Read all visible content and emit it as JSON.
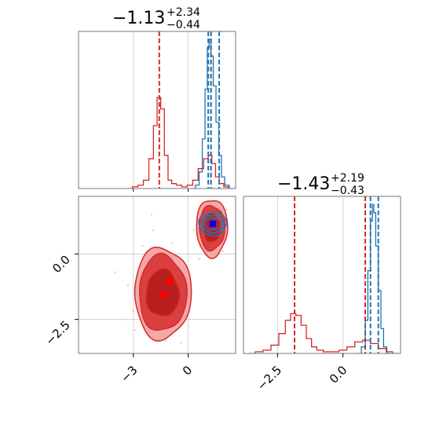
{
  "chart_data": [
    {
      "panel": "marginal-x",
      "type": "histogram",
      "title": {
        "value": "−1.13",
        "upper": "+2.34",
        "lower": "−0.44"
      },
      "xlim": [
        -6,
        2.6
      ],
      "grid": true,
      "series": [
        {
          "name": "",
          "color": "#d62728",
          "bins": [
            [
              -3.2,
              0.0
            ],
            [
              -2.9,
              0.01
            ],
            [
              -2.6,
              0.02
            ],
            [
              -2.3,
              0.05
            ],
            [
              -2.0,
              0.18
            ],
            [
              -1.8,
              0.38
            ],
            [
              -1.6,
              0.55
            ],
            [
              -1.4,
              0.48
            ],
            [
              -1.2,
              0.2
            ],
            [
              -1.0,
              0.05
            ],
            [
              -0.8,
              0.03
            ],
            [
              -0.5,
              0.02
            ],
            [
              -0.2,
              0.01
            ],
            [
              0.1,
              0.02
            ],
            [
              0.4,
              0.05
            ],
            [
              0.7,
              0.12
            ],
            [
              1.0,
              0.18
            ],
            [
              1.2,
              0.2
            ],
            [
              1.4,
              0.15
            ],
            [
              1.6,
              0.07
            ],
            [
              1.8,
              0.03
            ],
            [
              2.1,
              0.01
            ]
          ],
          "quantile_lines": [
            -1.58,
            1.25
          ]
        },
        {
          "name": "",
          "color": "#1f77b4",
          "bins": [
            [
              0.3,
              0.0
            ],
            [
              0.5,
              0.02
            ],
            [
              0.7,
              0.1
            ],
            [
              0.85,
              0.3
            ],
            [
              1.0,
              0.6
            ],
            [
              1.1,
              0.85
            ],
            [
              1.2,
              0.9
            ],
            [
              1.3,
              0.8
            ],
            [
              1.45,
              0.62
            ],
            [
              1.6,
              0.4
            ],
            [
              1.75,
              0.2
            ],
            [
              1.9,
              0.07
            ],
            [
              2.1,
              0.02
            ],
            [
              2.4,
              0.0
            ]
          ],
          "quantile_lines": [
            1.1,
            1.25,
            1.7
          ]
        }
      ]
    },
    {
      "panel": "joint",
      "type": "contour",
      "xlim": [
        -6,
        2.6
      ],
      "ylim": [
        -3.8,
        2.2
      ],
      "grid": true,
      "xticks": [
        -3,
        0
      ],
      "yticks": [
        0.0,
        -2.5
      ],
      "red_modes": [
        {
          "cx": -1.4,
          "cy": -1.5,
          "rx": [
            0.9,
            1.3,
            1.55
          ],
          "ry": [
            0.9,
            1.45,
            1.75
          ]
        },
        {
          "cx": 1.3,
          "cy": 1.0,
          "rx": [
            0.45,
            0.7,
            0.85
          ],
          "ry": [
            0.55,
            0.85,
            1.1
          ]
        }
      ],
      "blue_mode": {
        "cx": 1.35,
        "cy": 1.15,
        "rx": [
          0.45,
          0.6,
          0.75
        ],
        "ry": [
          0.22,
          0.33,
          0.45
        ]
      },
      "markers": [
        {
          "x": -1.35,
          "y": -1.55,
          "color": "#ff0000"
        },
        {
          "x": -1.0,
          "y": -1.05,
          "color": "#ff0000"
        },
        {
          "x": 1.35,
          "y": 1.15,
          "color": "#0000ff"
        }
      ],
      "scatter_points": [
        [
          -4.0,
          -0.7
        ],
        [
          -3.3,
          -1.2
        ],
        [
          -3.0,
          -2.2
        ],
        [
          -2.5,
          0.3
        ],
        [
          -2.2,
          -0.6
        ],
        [
          -2.0,
          1.5
        ],
        [
          -1.8,
          -2.4
        ],
        [
          -1.5,
          -0.2
        ],
        [
          -1.2,
          -3.3
        ],
        [
          -0.8,
          -0.5
        ],
        [
          -0.6,
          -2.9
        ],
        [
          -0.3,
          -2.0
        ],
        [
          0.2,
          -1.4
        ],
        [
          0.3,
          0.9
        ],
        [
          0.6,
          -0.2
        ],
        [
          1.9,
          0.1
        ],
        [
          2.1,
          1.7
        ],
        [
          0.8,
          1.9
        ],
        [
          -2.6,
          -1.9
        ],
        [
          -1.9,
          0.9
        ],
        [
          -0.9,
          0.4
        ],
        [
          -0.4,
          -3.4
        ],
        [
          -2.9,
          -2.9
        ],
        [
          -3.6,
          -2.5
        ]
      ]
    },
    {
      "panel": "marginal-y",
      "type": "histogram",
      "title": {
        "value": "−1.43",
        "upper": "+2.19",
        "lower": "−0.43"
      },
      "xlim": [
        -3.8,
        2.2
      ],
      "xticks": [
        -2.5,
        0.0
      ],
      "grid": true,
      "series": [
        {
          "name": "",
          "color": "#d62728",
          "bins": [
            [
              -3.5,
              0.0
            ],
            [
              -3.2,
              0.01
            ],
            [
              -2.9,
              0.02
            ],
            [
              -2.6,
              0.05
            ],
            [
              -2.3,
              0.12
            ],
            [
              -2.1,
              0.2
            ],
            [
              -1.9,
              0.24
            ],
            [
              -1.7,
              0.23
            ],
            [
              -1.5,
              0.17
            ],
            [
              -1.3,
              0.09
            ],
            [
              -1.1,
              0.04
            ],
            [
              -0.9,
              0.02
            ],
            [
              -0.6,
              0.01
            ],
            [
              -0.3,
              0.01
            ],
            [
              0.0,
              0.02
            ],
            [
              0.3,
              0.04
            ],
            [
              0.6,
              0.07
            ],
            [
              0.9,
              0.08
            ],
            [
              1.2,
              0.06
            ],
            [
              1.5,
              0.03
            ],
            [
              1.8,
              0.01
            ],
            [
              2.0,
              0.0
            ]
          ],
          "quantile_lines": [
            -1.85,
            0.85
          ]
        },
        {
          "name": "",
          "color": "#1f77b4",
          "bins": [
            [
              0.6,
              0.0
            ],
            [
              0.8,
              0.04
            ],
            [
              0.9,
              0.2
            ],
            [
              1.0,
              0.5
            ],
            [
              1.1,
              0.8
            ],
            [
              1.15,
              0.9
            ],
            [
              1.2,
              0.85
            ],
            [
              1.3,
              0.65
            ],
            [
              1.4,
              0.38
            ],
            [
              1.5,
              0.15
            ],
            [
              1.6,
              0.04
            ],
            [
              1.75,
              0.0
            ]
          ],
          "quantile_lines": [
            1.05,
            1.35
          ]
        }
      ]
    }
  ],
  "tick_text": {
    "joint_x": [
      "−3",
      "0"
    ],
    "joint_y": [
      "0.0",
      "−2.5"
    ],
    "marg_y_x": [
      "−2.5",
      "0.0"
    ]
  }
}
